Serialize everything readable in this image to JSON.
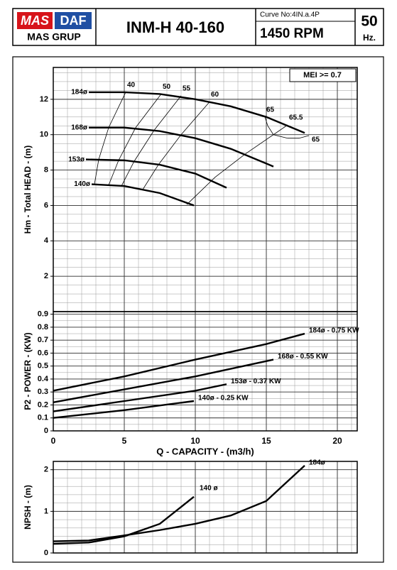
{
  "header": {
    "logo_left": "MAS",
    "logo_right": "DAF",
    "company": "MAS GRUP",
    "title": "INM-H 40-160",
    "curve_no": "Curve No:4IN.a.4P",
    "speed": "1450 RPM",
    "frequency": "50",
    "frequency_unit": "Hz."
  },
  "chart_data": [
    {
      "type": "line",
      "ylabel": "Hm - Total HEAD - (m)",
      "annotation": "MEI >= 0.7",
      "xlim": [
        0,
        21.4
      ],
      "ylim": [
        0,
        13.8
      ],
      "yticks": [
        2,
        4,
        6,
        8,
        10,
        12
      ],
      "grid": true,
      "series": [
        {
          "name": "184ø",
          "color": "#000000",
          "x": [
            2.5,
            5,
            7.5,
            10,
            12.5,
            15,
            17.7
          ],
          "values": [
            12.4,
            12.4,
            12.3,
            12.0,
            11.6,
            11.0,
            10.1
          ]
        },
        {
          "name": "168ø",
          "color": "#000000",
          "x": [
            2.5,
            5,
            7.5,
            10,
            12.5,
            15.5
          ],
          "values": [
            10.4,
            10.4,
            10.2,
            9.8,
            9.2,
            8.2
          ]
        },
        {
          "name": "153ø",
          "color": "#000000",
          "x": [
            2.3,
            5,
            7.5,
            10,
            12.2
          ],
          "values": [
            8.6,
            8.55,
            8.3,
            7.8,
            7.0
          ]
        },
        {
          "name": "140ø",
          "color": "#000000",
          "x": [
            2.7,
            5,
            7.5,
            9.9
          ],
          "values": [
            7.2,
            7.1,
            6.7,
            6.0
          ]
        }
      ],
      "efficiency_lines": [
        {
          "label": "40",
          "x": [
            5.1,
            3.9,
            3.2,
            2.9
          ],
          "values": [
            12.4,
            10.4,
            8.6,
            7.2
          ]
        },
        {
          "label": "50",
          "x": [
            7.6,
            5.8,
            4.6,
            3.9
          ],
          "values": [
            12.3,
            10.4,
            8.55,
            7.15
          ]
        },
        {
          "label": "55",
          "x": [
            9.0,
            7.1,
            5.7,
            4.8
          ],
          "values": [
            12.2,
            10.25,
            8.5,
            7.1
          ]
        },
        {
          "label": "60",
          "x": [
            11.0,
            9.0,
            7.4,
            6.3
          ],
          "values": [
            11.85,
            10.0,
            8.3,
            6.9
          ]
        },
        {
          "label": "65",
          "x": [
            14.9,
            15.1,
            15.5,
            16.5
          ],
          "values": [
            11.0,
            10.5,
            10.0,
            9.8
          ]
        },
        {
          "label": "65.5",
          "x": [
            16.5,
            13.5,
            11.4,
            9.4
          ],
          "values": [
            10.55,
            8.9,
            7.6,
            6.05
          ]
        },
        {
          "label": "65",
          "x": [
            16.5,
            17.3,
            18.0
          ],
          "values": [
            9.8,
            9.8,
            9.95
          ]
        }
      ]
    },
    {
      "type": "line",
      "ylabel": "P2 - POWER - (KW)",
      "xlabel": "Q - CAPACITY - (m3/h)",
      "xlim": [
        0,
        21.4
      ],
      "ylim": [
        0,
        0.92
      ],
      "xticks": [
        0,
        5,
        10,
        15,
        20
      ],
      "yticks": [
        0,
        0.1,
        0.2,
        0.3,
        0.4,
        0.5,
        0.6,
        0.7,
        0.8,
        0.9
      ],
      "grid": true,
      "series": [
        {
          "name": "184ø - 0.75 KW",
          "color": "#000000",
          "x": [
            0,
            5,
            10,
            15,
            17.7
          ],
          "values": [
            0.31,
            0.42,
            0.55,
            0.67,
            0.75
          ]
        },
        {
          "name": "168ø - 0.55 KW",
          "color": "#000000",
          "x": [
            0,
            5,
            10,
            15.5
          ],
          "values": [
            0.22,
            0.32,
            0.42,
            0.55
          ]
        },
        {
          "name": "153ø - 0.37 KW",
          "color": "#000000",
          "x": [
            0,
            5,
            10,
            12.2
          ],
          "values": [
            0.15,
            0.23,
            0.31,
            0.36
          ]
        },
        {
          "name": "140ø - 0.25 KW",
          "color": "#000000",
          "x": [
            0,
            5,
            9.9
          ],
          "values": [
            0.1,
            0.16,
            0.23
          ]
        }
      ]
    },
    {
      "type": "line",
      "ylabel": "NPSH - (m)",
      "xlim": [
        0,
        21.4
      ],
      "ylim": [
        0,
        2.2
      ],
      "yticks": [
        0,
        1,
        2
      ],
      "grid": true,
      "series": [
        {
          "name": "184ø",
          "color": "#000000",
          "x": [
            0,
            2.5,
            5,
            7.5,
            10,
            12.5,
            15,
            17.7
          ],
          "values": [
            0.28,
            0.3,
            0.42,
            0.55,
            0.7,
            0.9,
            1.25,
            2.1
          ]
        },
        {
          "name": "140 ø",
          "color": "#000000",
          "x": [
            0,
            2.5,
            5,
            7.5,
            9.9
          ],
          "values": [
            0.22,
            0.25,
            0.4,
            0.7,
            1.35
          ]
        }
      ]
    }
  ]
}
